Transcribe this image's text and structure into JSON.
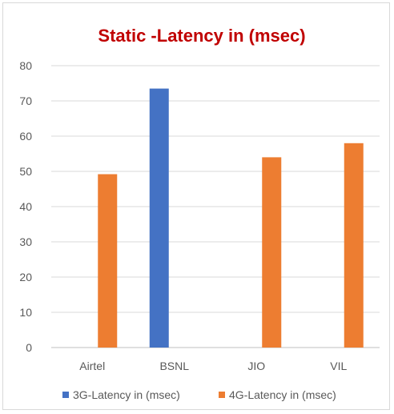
{
  "chart_data": {
    "type": "bar",
    "title": "Static -Latency in (msec)",
    "categories": [
      "Airtel",
      "BSNL",
      "JIO",
      "VIL"
    ],
    "series": [
      {
        "name": "3G-Latency in (msec)",
        "values": [
          null,
          73.5,
          null,
          null
        ],
        "color": "#4472c4"
      },
      {
        "name": "4G-Latency in (msec)",
        "values": [
          49.2,
          null,
          54,
          58
        ],
        "color": "#ed7d31"
      }
    ],
    "ylim": [
      0,
      80
    ],
    "yticks": [
      0,
      10,
      20,
      30,
      40,
      50,
      60,
      70,
      80
    ],
    "grid": true,
    "legend": "bottom",
    "title_color": "#c00000"
  }
}
